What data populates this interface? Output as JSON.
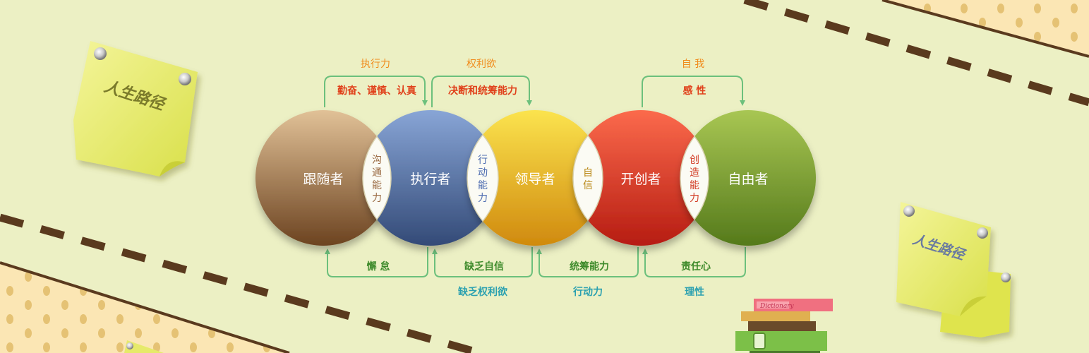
{
  "notes": {
    "left": "人生路径",
    "right": "人生路径"
  },
  "book": {
    "label": "Dictionary"
  },
  "stages": [
    {
      "label": "跟随者",
      "color_top": "#e1c197",
      "color_bottom": "#6c4320"
    },
    {
      "label": "执行者",
      "color_top": "#88a5d6",
      "color_bottom": "#334a77"
    },
    {
      "label": "领导者",
      "color_top": "#fbe34e",
      "color_bottom": "#d08a0e"
    },
    {
      "label": "开创者",
      "color_top": "#fb6a4c",
      "color_bottom": "#b61c12"
    },
    {
      "label": "自由者",
      "color_top": "#a8c653",
      "color_bottom": "#557a1b"
    }
  ],
  "overlaps": [
    {
      "chars": [
        "沟",
        "通",
        "能",
        "力"
      ],
      "color": "#9a6a42"
    },
    {
      "chars": [
        "行",
        "动",
        "能",
        "力"
      ],
      "color": "#4d6cb0"
    },
    {
      "chars": [
        "自",
        "信"
      ],
      "color": "#b88612"
    },
    {
      "chars": [
        "创",
        "造",
        "能",
        "力"
      ],
      "color": "#d23c24"
    }
  ],
  "top_flows": [
    {
      "title": "执行力",
      "subtitle": "勤奋、谨慎、认真"
    },
    {
      "title": "权利欲",
      "subtitle": "决断和统筹能力"
    },
    {
      "title": "自 我",
      "subtitle": "感 性"
    }
  ],
  "bottom_flows": [
    {
      "inner": "懈 怠",
      "outer": ""
    },
    {
      "inner": "缺乏自信",
      "outer": "缺乏权利欲"
    },
    {
      "inner": "统筹能力",
      "outer": "行动力"
    },
    {
      "inner": "责任心",
      "outer": "理性"
    }
  ],
  "colors": {
    "background": "#ecf0c4",
    "arrow": "#6cc07c",
    "title_orange": "#f08a1a",
    "subtitle_red": "#e0401a",
    "bottom_green": "#3d8a2a",
    "bottom_teal": "#2aa0b0",
    "dash": "#5a3a1e"
  }
}
